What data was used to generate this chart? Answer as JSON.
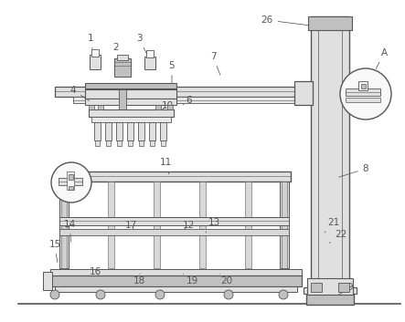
{
  "bg_color": "#ffffff",
  "lc": "#555555",
  "fill_light": "#e0e0e0",
  "fill_mid": "#c0c0c0",
  "fill_dark": "#a0a0a0",
  "fill_white": "#f8f8f8"
}
